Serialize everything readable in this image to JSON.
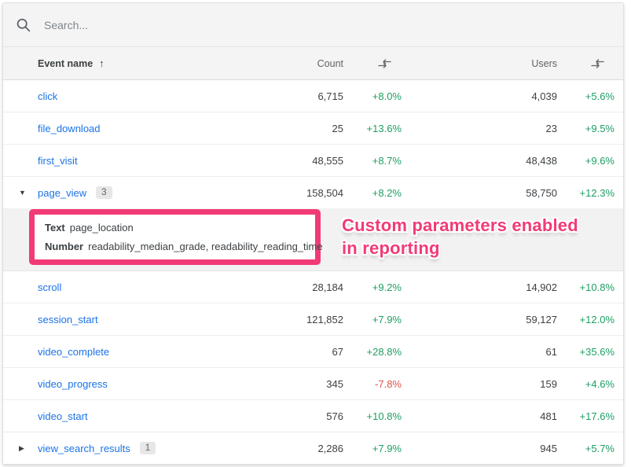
{
  "search": {
    "placeholder": "Search..."
  },
  "table": {
    "columns": {
      "event_name": "Event name",
      "count": "Count",
      "users": "Users"
    },
    "sort": {
      "column": "Event name",
      "direction": "ascending",
      "icon": "arrow-up"
    },
    "expanded_after_index": 3,
    "rows": [
      {
        "name": "click",
        "expander": null,
        "badge": null,
        "count": "6,715",
        "count_change": "+8.0%",
        "count_change_dir": "up",
        "users": "4,039",
        "users_change": "+5.6%",
        "users_change_dir": "up"
      },
      {
        "name": "file_download",
        "expander": null,
        "badge": null,
        "count": "25",
        "count_change": "+13.6%",
        "count_change_dir": "up",
        "users": "23",
        "users_change": "+9.5%",
        "users_change_dir": "up"
      },
      {
        "name": "first_visit",
        "expander": null,
        "badge": null,
        "count": "48,555",
        "count_change": "+8.7%",
        "count_change_dir": "up",
        "users": "48,438",
        "users_change": "+9.6%",
        "users_change_dir": "up"
      },
      {
        "name": "page_view",
        "expander": "expanded",
        "badge": "3",
        "count": "158,504",
        "count_change": "+8.2%",
        "count_change_dir": "up",
        "users": "58,750",
        "users_change": "+12.3%",
        "users_change_dir": "up"
      },
      {
        "name": "scroll",
        "expander": null,
        "badge": null,
        "count": "28,184",
        "count_change": "+9.2%",
        "count_change_dir": "up",
        "users": "14,902",
        "users_change": "+10.8%",
        "users_change_dir": "up"
      },
      {
        "name": "session_start",
        "expander": null,
        "badge": null,
        "count": "121,852",
        "count_change": "+7.9%",
        "count_change_dir": "up",
        "users": "59,127",
        "users_change": "+12.0%",
        "users_change_dir": "up"
      },
      {
        "name": "video_complete",
        "expander": null,
        "badge": null,
        "count": "67",
        "count_change": "+28.8%",
        "count_change_dir": "up",
        "users": "61",
        "users_change": "+35.6%",
        "users_change_dir": "up"
      },
      {
        "name": "video_progress",
        "expander": null,
        "badge": null,
        "count": "345",
        "count_change": "-7.8%",
        "count_change_dir": "down",
        "users": "159",
        "users_change": "+4.6%",
        "users_change_dir": "up"
      },
      {
        "name": "video_start",
        "expander": null,
        "badge": null,
        "count": "576",
        "count_change": "+10.8%",
        "count_change_dir": "up",
        "users": "481",
        "users_change": "+17.6%",
        "users_change_dir": "up"
      },
      {
        "name": "view_search_results",
        "expander": "collapsed",
        "badge": "1",
        "count": "2,286",
        "count_change": "+7.9%",
        "count_change_dir": "up",
        "users": "945",
        "users_change": "+5.7%",
        "users_change_dir": "up"
      }
    ]
  },
  "expanded_panel": {
    "parameters": [
      {
        "type": "Text",
        "names": "page_location"
      },
      {
        "type": "Number",
        "names": "readability_median_grade, readability_reading_time"
      }
    ]
  },
  "annotation": {
    "line1": "Custom parameters enabled",
    "line2": "in reporting"
  },
  "colors": {
    "link_blue": "#1a73e8",
    "positive_green": "#1e9e63",
    "negative_red": "#e0534e",
    "annotation_pink": "#f23b76"
  }
}
